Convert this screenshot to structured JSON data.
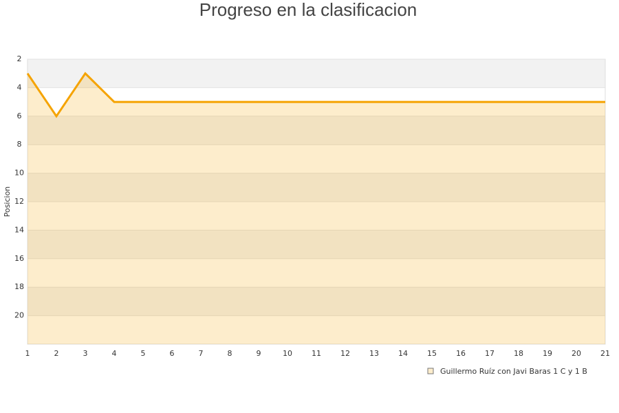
{
  "chart_data": {
    "type": "area",
    "title": "Progreso en la clasificacion",
    "y_label": "Posicion",
    "x": [
      1,
      2,
      3,
      4,
      5,
      6,
      7,
      8,
      9,
      10,
      11,
      12,
      13,
      14,
      15,
      16,
      17,
      18,
      19,
      20,
      21
    ],
    "series": [
      {
        "name": "Guillermo Ruíz con Javi Baras 1 C y 1 B",
        "color": "#f5a300",
        "values": [
          3,
          6,
          3,
          5,
          5,
          5,
          5,
          5,
          5,
          5,
          5,
          5,
          5,
          5,
          5,
          5,
          5,
          5,
          5,
          5,
          5
        ]
      }
    ],
    "xlim": [
      1,
      21
    ],
    "xticks": [
      1,
      2,
      3,
      4,
      5,
      6,
      7,
      8,
      9,
      10,
      11,
      12,
      13,
      14,
      15,
      16,
      17,
      18,
      19,
      20,
      21
    ],
    "ylim": [
      2,
      22
    ],
    "yticks": [
      2,
      4,
      6,
      8,
      10,
      12,
      14,
      16,
      18,
      20
    ],
    "y_inverted": true,
    "grid": true
  }
}
